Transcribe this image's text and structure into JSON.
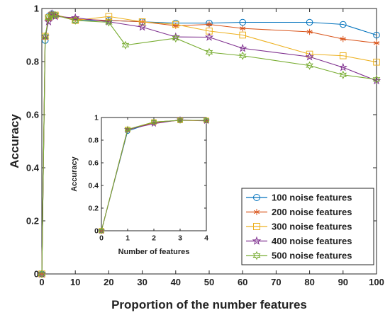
{
  "chart_data": [
    {
      "type": "line",
      "xlabel": "Proportion of the number features",
      "ylabel": "Accuracy",
      "xlim": [
        0,
        100
      ],
      "ylim": [
        0,
        1
      ],
      "xticks": [
        0,
        10,
        20,
        30,
        40,
        50,
        60,
        70,
        80,
        90,
        100
      ],
      "yticks": [
        0,
        0.2,
        0.4,
        0.6,
        0.8,
        1
      ],
      "ytick_labels": [
        "0",
        "0.2",
        "0.4",
        "0.6",
        "0.8",
        "1"
      ],
      "grid": false,
      "legend_position": "lower-right",
      "series": [
        {
          "name": "100 noise features",
          "marker": "circle",
          "color": "#0072BD",
          "x": [
            0,
            1,
            2,
            3,
            4,
            10,
            20,
            30,
            40,
            50,
            60,
            80,
            90,
            100
          ],
          "y": [
            0,
            0.88,
            0.97,
            0.98,
            0.975,
            0.955,
            0.955,
            0.95,
            0.945,
            0.945,
            0.948,
            0.948,
            0.94,
            0.9
          ]
        },
        {
          "name": "200 noise features",
          "marker": "asterisk",
          "color": "#D95319",
          "x": [
            0,
            1,
            2,
            3,
            4,
            10,
            20,
            30,
            40,
            50,
            60,
            80,
            90,
            100
          ],
          "y": [
            0,
            0.89,
            0.96,
            0.975,
            0.975,
            0.96,
            0.955,
            0.95,
            0.935,
            0.94,
            0.925,
            0.912,
            0.885,
            0.87
          ]
        },
        {
          "name": "300 noise features",
          "marker": "square",
          "color": "#EDB120",
          "x": [
            0,
            1,
            2,
            3,
            4,
            10,
            20,
            30,
            40,
            50,
            60,
            80,
            90,
            100
          ],
          "y": [
            0,
            0.895,
            0.965,
            0.975,
            0.975,
            0.955,
            0.97,
            0.95,
            0.94,
            0.915,
            0.9,
            0.828,
            0.822,
            0.798
          ]
        },
        {
          "name": "400 noise features",
          "marker": "star",
          "color": "#7E2F8E",
          "x": [
            0,
            1,
            2,
            3,
            4,
            10,
            20,
            30,
            40,
            50,
            60,
            80,
            90,
            100
          ],
          "y": [
            0,
            0.895,
            0.95,
            0.98,
            0.97,
            0.965,
            0.95,
            0.93,
            0.893,
            0.892,
            0.85,
            0.818,
            0.778,
            0.728
          ]
        },
        {
          "name": "500 noise features",
          "marker": "hexagram",
          "color": "#77AC30",
          "x": [
            0,
            1,
            2,
            3,
            4,
            10,
            20,
            25,
            40,
            50,
            60,
            80,
            90,
            100
          ],
          "y": [
            0,
            0.895,
            0.965,
            0.975,
            0.975,
            0.955,
            0.948,
            0.862,
            0.888,
            0.835,
            0.822,
            0.785,
            0.75,
            0.733
          ]
        }
      ]
    },
    {
      "type": "line",
      "xlabel": "Number of features",
      "ylabel": "Accuracy",
      "xlim": [
        0,
        4
      ],
      "ylim": [
        0,
        1
      ],
      "xticks": [
        0,
        1,
        2,
        3,
        4
      ],
      "yticks": [
        0,
        0.2,
        0.4,
        0.6,
        0.8,
        1
      ],
      "ytick_labels": [
        "0",
        "0.2",
        "0.4",
        "0.6",
        "0.8",
        "1"
      ],
      "grid": false,
      "series": [
        {
          "marker": "circle",
          "color": "#0072BD",
          "x": [
            0,
            1,
            2,
            3,
            4
          ],
          "y": [
            0,
            0.88,
            0.96,
            0.975,
            0.975
          ]
        },
        {
          "marker": "asterisk",
          "color": "#D95319",
          "x": [
            0,
            1,
            2,
            3,
            4
          ],
          "y": [
            0,
            0.89,
            0.955,
            0.975,
            0.97
          ]
        },
        {
          "marker": "square",
          "color": "#EDB120",
          "x": [
            0,
            1,
            2,
            3,
            4
          ],
          "y": [
            0,
            0.895,
            0.96,
            0.975,
            0.975
          ]
        },
        {
          "marker": "star",
          "color": "#7E2F8E",
          "x": [
            0,
            1,
            2,
            3,
            4
          ],
          "y": [
            0,
            0.895,
            0.945,
            0.98,
            0.97
          ]
        },
        {
          "marker": "hexagram",
          "color": "#77AC30",
          "x": [
            0,
            1,
            2,
            3,
            4
          ],
          "y": [
            0,
            0.895,
            0.96,
            0.975,
            0.975
          ]
        }
      ]
    }
  ]
}
